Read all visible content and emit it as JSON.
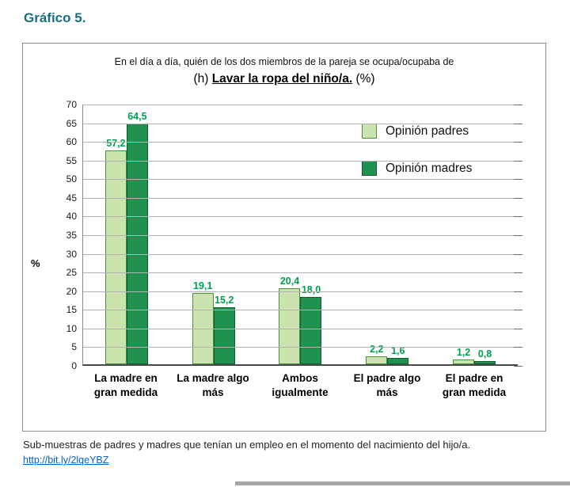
{
  "page": {
    "heading": "Gráfico 5.",
    "footnote": "Sub-muestras de padres y madres que tenían un empleo en el momento del nacimiento del hijo/a.",
    "link": "http://bit.ly/2lqeYBZ"
  },
  "chart_data": {
    "type": "bar",
    "title_line1": "En el día a día, quién de los dos miembros de la pareja se ocupa/ocupaba de",
    "title_prefix": "(h) ",
    "title_main": "Lavar la ropa del niño/a.",
    "title_suffix": " (%)",
    "ylabel": "%",
    "ylim": [
      0,
      70
    ],
    "ytick_step": 5,
    "grid": true,
    "legend_position": "top-right",
    "value_label_color": "#00a04f",
    "categories": [
      "La madre en gran medida",
      "La madre algo más",
      "Ambos igualmente",
      "El padre algo más",
      "El padre en gran medida"
    ],
    "series": [
      {
        "name": "Opinión padres",
        "fill": "#cbe3ae",
        "border": "#4e8f39",
        "values": [
          57.2,
          19.1,
          20.4,
          2.2,
          1.2
        ],
        "labels": [
          "57,2",
          "19,1",
          "20,4",
          "2,2",
          "1,2"
        ]
      },
      {
        "name": "Opinión madres",
        "fill": "#219150",
        "border": "#0e5d31",
        "values": [
          64.5,
          15.2,
          18.0,
          1.6,
          0.8
        ],
        "labels": [
          "64,5",
          "15,2",
          "18,0",
          "1,6",
          "0,8"
        ]
      }
    ]
  }
}
